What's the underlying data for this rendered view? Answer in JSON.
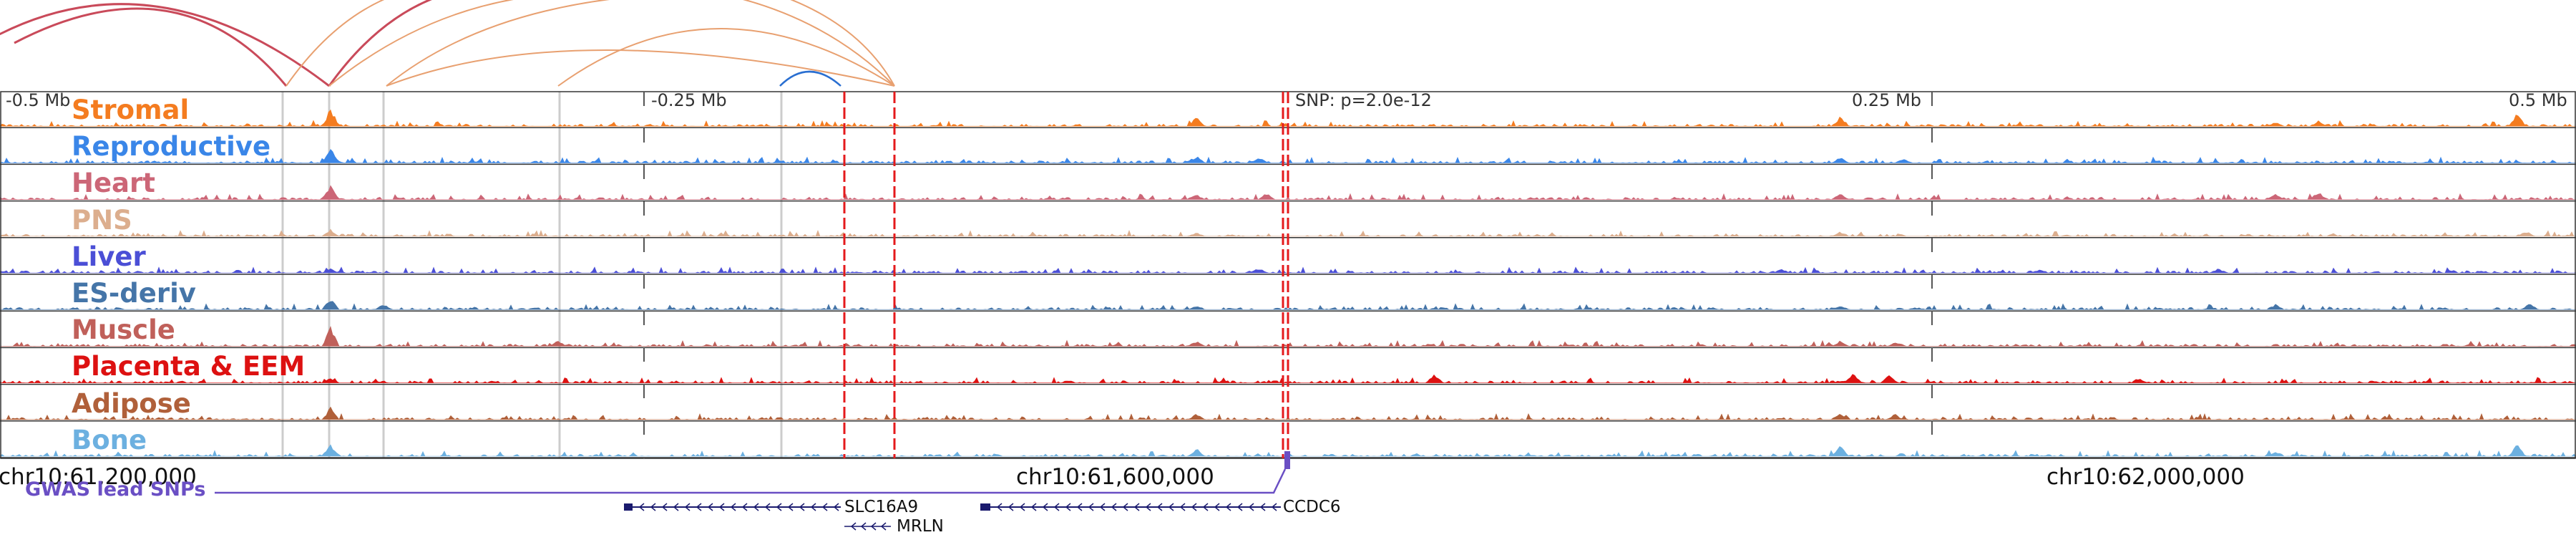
{
  "tracks": [
    {
      "name": "Stromal",
      "color": "#f47c20"
    },
    {
      "name": "Reproductive",
      "color": "#3a86e8"
    },
    {
      "name": "Heart",
      "color": "#cc6677"
    },
    {
      "name": "PNS",
      "color": "#dcae8e"
    },
    {
      "name": "Liver",
      "color": "#4b4fd6"
    },
    {
      "name": "ES-deriv",
      "color": "#4575a8"
    },
    {
      "name": "Muscle",
      "color": "#c0605a"
    },
    {
      "name": "Placenta & EEM",
      "color": "#dd1111"
    },
    {
      "name": "Adipose",
      "color": "#b0603a"
    },
    {
      "name": "Bone",
      "color": "#6cb0e0"
    }
  ],
  "offset_labels": {
    "left_far": "-0.5 Mb",
    "left_near": "-0.25 Mb",
    "right_near": "0.25 Mb",
    "right_far": "0.5 Mb"
  },
  "snp_annotation": "SNP: p=2.0e-12",
  "chromosome_labels": {
    "left": "chr10:61,200,000",
    "center": "chr10:61,600,000",
    "right": "chr10:62,000,000"
  },
  "legend": {
    "gwas": "GWAS lead SNPs"
  },
  "genes": [
    {
      "name": "SLC16A9",
      "strand": "-"
    },
    {
      "name": "CCDC6",
      "strand": "-"
    },
    {
      "name": "MRLN",
      "strand": "-"
    }
  ],
  "colors": {
    "snp_marker": "#e41a1c",
    "arc_red": "#c94a5a",
    "arc_orange": "#e8a070",
    "arc_blue": "#2a6fd1",
    "gene_body": "#1a1a6e",
    "gwas": "#6a4fc4"
  }
}
